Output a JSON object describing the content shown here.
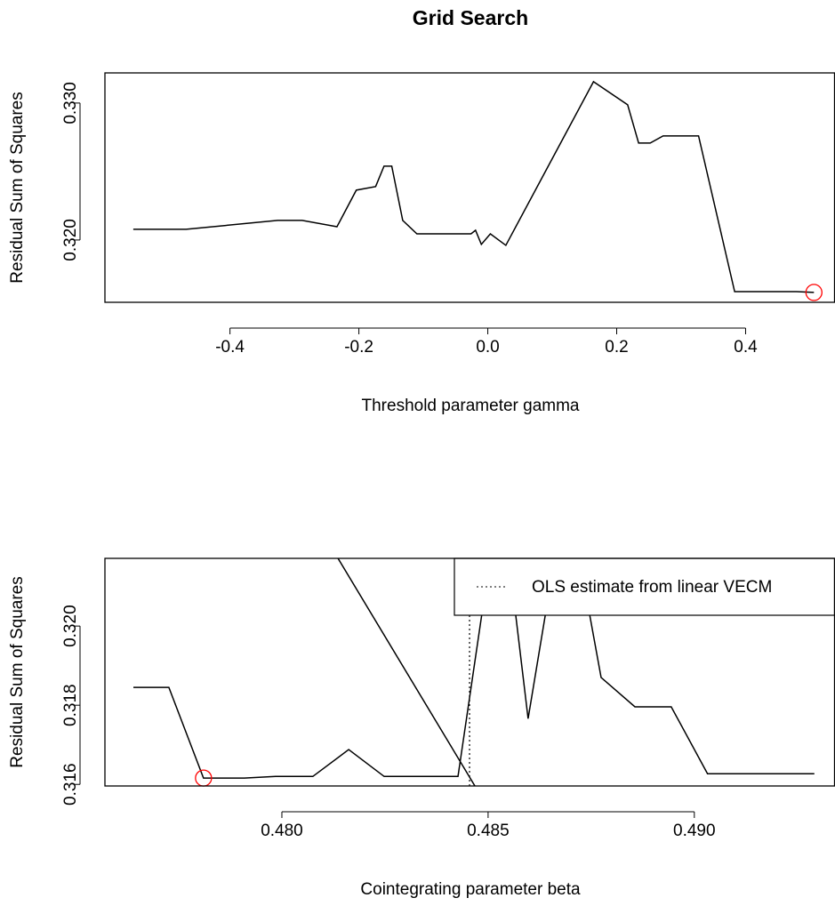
{
  "title": "Grid Search",
  "chart_data": [
    {
      "type": "line",
      "xlabel": "Threshold parameter gamma",
      "ylabel": "Residual Sum of Squares",
      "x": [
        -0.55,
        -0.468,
        -0.326,
        -0.288,
        -0.234,
        -0.204,
        -0.174,
        -0.161,
        -0.149,
        -0.132,
        -0.11,
        -0.026,
        -0.019,
        -0.01,
        0.004,
        0.028,
        0.164,
        0.217,
        0.234,
        0.252,
        0.272,
        0.327,
        0.383,
        0.479,
        0.506
      ],
      "values": [
        0.32078,
        0.32078,
        0.32143,
        0.32143,
        0.32097,
        0.32364,
        0.3239,
        0.32539,
        0.32539,
        0.32143,
        0.32045,
        0.32045,
        0.32071,
        0.31968,
        0.32045,
        0.31961,
        0.33156,
        0.32987,
        0.32708,
        0.32708,
        0.3276,
        0.3276,
        0.31623,
        0.31623,
        0.31617
      ],
      "color": "#000000",
      "marker": {
        "x": 0.506,
        "y": 0.31617,
        "color": "#ff0000"
      },
      "xlim": [
        -0.594,
        0.538
      ],
      "ylim": [
        0.31545,
        0.3322
      ],
      "xticks": [
        -0.4,
        -0.2,
        {
          "value": 0,
          "label": "0.0"
        },
        0.2,
        0.4
      ],
      "yticks": [
        {
          "value": 0.32,
          "label": "0.320"
        },
        {
          "value": 0.33,
          "label": "0.330"
        }
      ]
    },
    {
      "type": "line",
      "xlabel": "Cointegrating parameter beta",
      "ylabel": "Residual Sum of Squares",
      "x": [
        0.4764,
        0.47726,
        0.4781,
        0.47909,
        0.47985,
        0.48075,
        0.48162,
        0.48248,
        0.48427,
        0.4853,
        0.48597,
        0.4869,
        0.48774,
        0.48856,
        0.48944,
        0.49032,
        0.49291,
        null,
        0.48004,
        0.48468
      ],
      "values": [
        0.31845,
        0.31845,
        0.31616,
        0.31616,
        0.3162,
        0.3162,
        0.31688,
        0.3162,
        0.3162,
        0.3235,
        0.31766,
        0.3235,
        0.3187,
        0.31796,
        0.31796,
        0.31627,
        0.31627,
        null,
        0.324,
        0.31596
      ],
      "color": "#000000",
      "marker": {
        "x": 0.4781,
        "y": 0.31616,
        "color": "#ff0000"
      },
      "vline": {
        "value": 0.48455,
        "label": "OLS estimate from linear VECM",
        "style": "dotted"
      },
      "xlim": [
        0.47571,
        0.4934
      ],
      "ylim": [
        0.31596,
        0.32171
      ],
      "xticks": [
        {
          "value": 0.48,
          "label": "0.480"
        },
        {
          "value": 0.485,
          "label": "0.485"
        },
        {
          "value": 0.49,
          "label": "0.490"
        }
      ],
      "yticks": [
        {
          "value": 0.316,
          "label": "0.316"
        },
        {
          "value": 0.318,
          "label": "0.318"
        },
        {
          "value": 0.32,
          "label": "0.320"
        }
      ]
    }
  ]
}
